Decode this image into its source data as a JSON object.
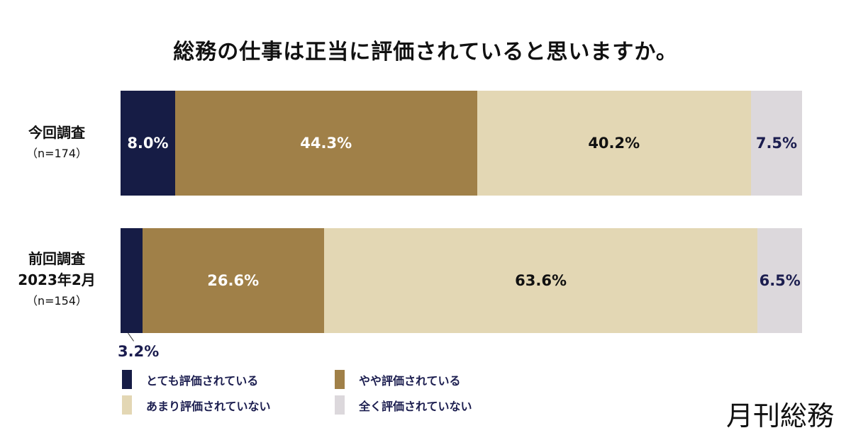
{
  "chart_data": {
    "type": "bar",
    "orientation": "horizontal-stacked-100",
    "title": "総務の仕事は正当に評価されていると思いますか。",
    "categories": [
      {
        "label": "今回調査",
        "sub": "",
        "n": "（n=174）"
      },
      {
        "label": "前回調査",
        "sub": "2023年2月",
        "n": "（n=154）"
      }
    ],
    "series": [
      {
        "name": "とても評価されている",
        "color": "#161c45",
        "label_color": "#ffffff",
        "values": [
          8.0,
          3.2
        ],
        "labels": [
          "8.0%",
          "3.2%"
        ]
      },
      {
        "name": "やや評価されている",
        "color": "#a08048",
        "label_color": "#ffffff",
        "values": [
          44.3,
          26.6
        ],
        "labels": [
          "44.3%",
          "26.6%"
        ]
      },
      {
        "name": "あまり評価されていない",
        "color": "#e3d7b4",
        "label_color": "#111111",
        "values": [
          40.2,
          63.6
        ],
        "labels": [
          "40.2%",
          "63.6%"
        ]
      },
      {
        "name": "全く評価されていない",
        "color": "#dcd8dc",
        "label_color": "#1b1d4f",
        "values": [
          7.5,
          6.5
        ],
        "labels": [
          "7.5%",
          "6.5%"
        ]
      }
    ],
    "legend_position": "bottom-left",
    "xlim": [
      0,
      100
    ]
  },
  "brand": "月刊総務"
}
